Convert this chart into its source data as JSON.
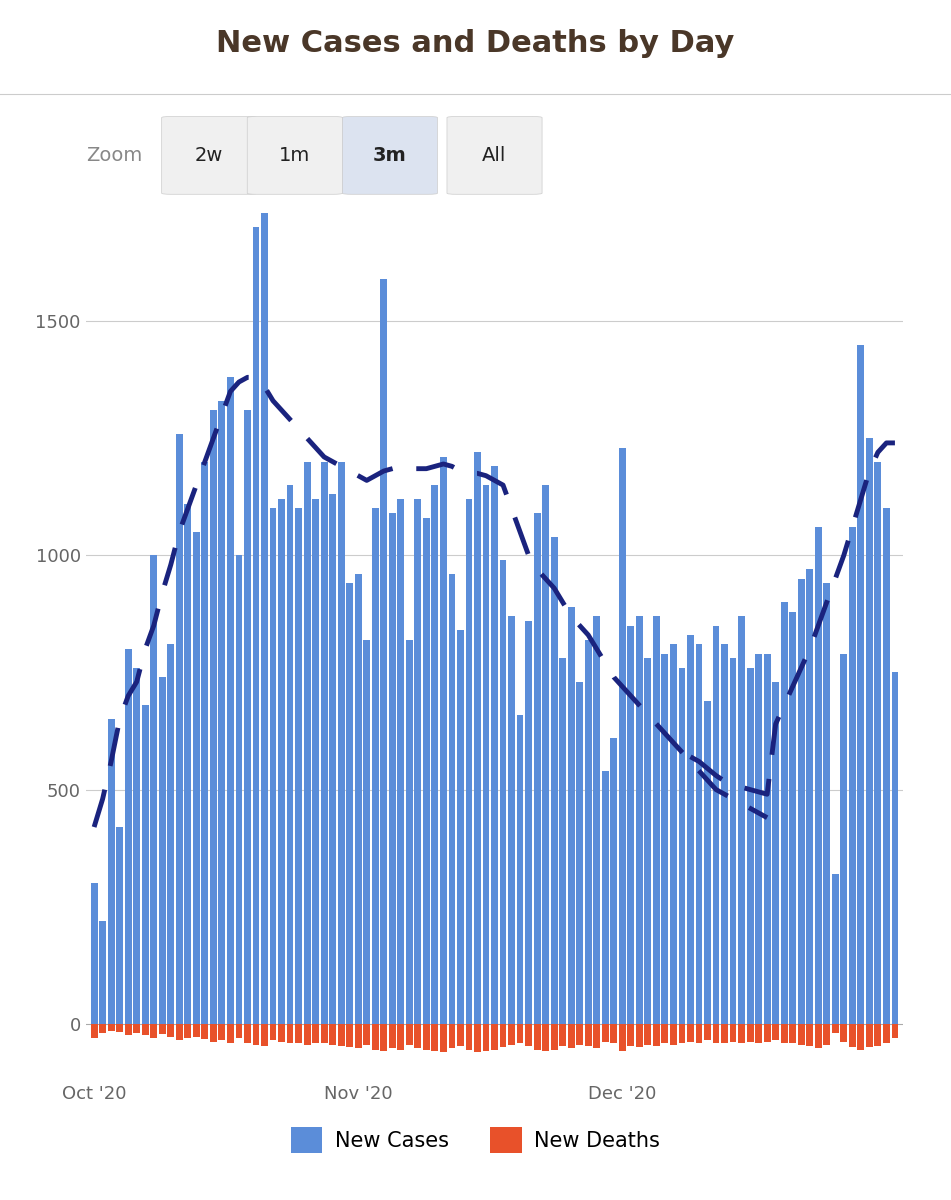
{
  "title": "New Cases and Deaths by Day",
  "title_color": "#4a3728",
  "zoom_labels": [
    "Zoom",
    "2w",
    "1m",
    "3m",
    "All"
  ],
  "zoom_active": "3m",
  "background_color": "#ffffff",
  "plot_bg_color": "#ffffff",
  "bar_color_cases": "#5b8dd9",
  "bar_color_deaths": "#e8512a",
  "rolling_avg_color": "#1a237e",
  "yticks": [
    0,
    500,
    1000,
    1500
  ],
  "xtick_labels": [
    "Oct '20",
    "Nov '20",
    "Dec '20"
  ],
  "legend_cases": "New Cases",
  "legend_deaths": "New Deaths",
  "cases": [
    300,
    220,
    650,
    420,
    800,
    760,
    680,
    1000,
    740,
    810,
    1260,
    1110,
    1050,
    1200,
    1310,
    1330,
    1380,
    1000,
    1310,
    1700,
    1730,
    1100,
    1120,
    1150,
    1100,
    1200,
    1120,
    1200,
    1130,
    1200,
    940,
    960,
    820,
    1100,
    1590,
    1090,
    1120,
    820,
    1120,
    1080,
    1150,
    1210,
    960,
    840,
    1120,
    1220,
    1150,
    1190,
    990,
    870,
    660,
    860,
    1090,
    1150,
    1040,
    780,
    890,
    730,
    820,
    870,
    540,
    610,
    1230,
    850,
    870,
    780,
    870,
    790,
    810,
    760,
    830,
    810,
    690,
    850,
    810,
    780,
    870,
    760,
    790,
    790,
    730,
    900,
    880,
    950,
    970,
    1060,
    940,
    320,
    790,
    1060,
    1450,
    1250,
    1200,
    1100,
    750
  ],
  "deaths": [
    -30,
    -20,
    -15,
    -18,
    -25,
    -20,
    -25,
    -30,
    -22,
    -28,
    -35,
    -30,
    -28,
    -32,
    -38,
    -35,
    -40,
    -30,
    -42,
    -45,
    -48,
    -35,
    -38,
    -40,
    -42,
    -45,
    -40,
    -42,
    -45,
    -48,
    -50,
    -52,
    -45,
    -55,
    -58,
    -52,
    -55,
    -45,
    -52,
    -55,
    -58,
    -60,
    -52,
    -48,
    -55,
    -60,
    -58,
    -55,
    -50,
    -45,
    -42,
    -48,
    -55,
    -58,
    -55,
    -48,
    -52,
    -45,
    -48,
    -52,
    -38,
    -42,
    -58,
    -48,
    -50,
    -45,
    -48,
    -42,
    -45,
    -42,
    -38,
    -42,
    -35,
    -42,
    -40,
    -38,
    -42,
    -38,
    -40,
    -38,
    -35,
    -42,
    -40,
    -45,
    -48,
    -52,
    -45,
    -20,
    -38,
    -50,
    -55,
    -50,
    -48,
    -42,
    -30
  ],
  "rolling_avg": [
    420,
    480,
    560,
    650,
    700,
    730,
    800,
    850,
    920,
    980,
    1050,
    1100,
    1150,
    1200,
    1250,
    1300,
    1350,
    1370,
    1380,
    1380,
    1360,
    1330,
    1310,
    1290,
    1270,
    1250,
    1230,
    1210,
    1200,
    1190,
    1180,
    1170,
    1160,
    1170,
    1180,
    1185,
    1190,
    1185,
    1185,
    1185,
    1190,
    1195,
    1190,
    1180,
    1175,
    1175,
    1170,
    1160,
    1150,
    1100,
    1050,
    1000,
    970,
    950,
    930,
    900,
    870,
    850,
    830,
    800,
    770,
    740,
    720,
    700,
    680,
    660,
    640,
    620,
    600,
    580,
    560,
    540,
    520,
    500,
    490,
    480,
    470,
    460,
    450,
    440,
    null,
    null,
    null,
    null,
    null,
    null,
    null,
    null,
    null,
    null,
    null,
    null,
    null,
    null,
    null
  ],
  "rolling_avg_dec": [
    null,
    null,
    null,
    null,
    null,
    null,
    null,
    null,
    null,
    null,
    null,
    null,
    null,
    null,
    null,
    null,
    null,
    null,
    null,
    null,
    null,
    null,
    null,
    null,
    null,
    null,
    null,
    null,
    null,
    null,
    null,
    null,
    null,
    null,
    null,
    null,
    null,
    null,
    null,
    null,
    null,
    null,
    null,
    null,
    null,
    null,
    null,
    null,
    null,
    null,
    null,
    null,
    null,
    null,
    null,
    null,
    null,
    null,
    null,
    null,
    null,
    null,
    null,
    null,
    null,
    null,
    null,
    null,
    null,
    null,
    570,
    560,
    545,
    530,
    518,
    510,
    505,
    500,
    495,
    490,
    640,
    680,
    720,
    760,
    800,
    850,
    900,
    950,
    1000,
    1060,
    1120,
    1180,
    1220,
    1240,
    1240
  ],
  "oct_idx": 0,
  "nov_idx": 31,
  "dec_idx": 62
}
